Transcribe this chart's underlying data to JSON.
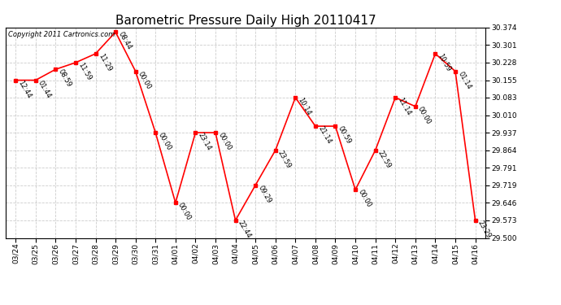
{
  "title": "Barometric Pressure Daily High 20110417",
  "copyright": "Copyright 2011 Cartronics.com",
  "dates": [
    "03/24",
    "03/25",
    "03/26",
    "03/27",
    "03/28",
    "03/29",
    "03/30",
    "03/31",
    "04/01",
    "04/02",
    "04/03",
    "04/04",
    "04/05",
    "04/06",
    "04/07",
    "04/08",
    "04/09",
    "04/10",
    "04/11",
    "04/12",
    "04/13",
    "04/14",
    "04/15",
    "04/16"
  ],
  "values": [
    30.155,
    30.155,
    30.2,
    30.228,
    30.265,
    30.355,
    30.192,
    29.937,
    29.646,
    29.937,
    29.937,
    29.573,
    29.719,
    29.864,
    30.083,
    29.964,
    29.964,
    29.7,
    29.864,
    30.083,
    30.046,
    30.265,
    30.192,
    29.573
  ],
  "times": [
    "12:44",
    "01:44",
    "08:59",
    "11:59",
    "11:29",
    "08:44",
    "00:00",
    "00:00",
    "00:00",
    "23:14",
    "00:00",
    "22:44",
    "09:29",
    "23:59",
    "10:14",
    "21:14",
    "00:59",
    "00:00",
    "22:59",
    "11:14",
    "00:00",
    "10:59",
    "01:14",
    "23:29"
  ],
  "ylim": [
    29.5,
    30.374
  ],
  "yticks": [
    29.5,
    29.573,
    29.646,
    29.719,
    29.791,
    29.864,
    29.937,
    30.01,
    30.083,
    30.155,
    30.228,
    30.301,
    30.374
  ],
  "line_color": "#ff0000",
  "marker_color": "#ff0000",
  "background_color": "#ffffff",
  "grid_color": "#cccccc",
  "title_fontsize": 11,
  "tick_fontsize": 6.5,
  "annot_fontsize": 6,
  "copyright_fontsize": 6
}
